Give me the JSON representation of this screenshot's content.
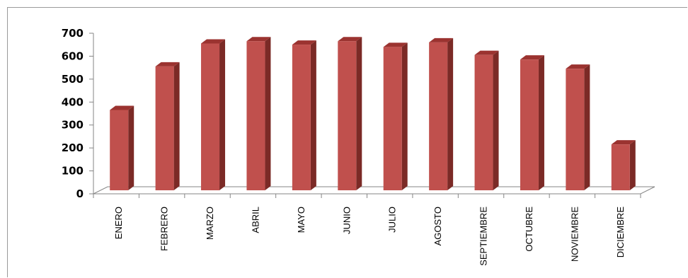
{
  "chart_data": {
    "type": "bar",
    "style": "3d-column",
    "categories": [
      "ENERO",
      "FEBRERO",
      "MARZO",
      "ABRIL",
      "MAYO",
      "JUNIO",
      "JULIO",
      "AGOSTO",
      "SEPTIEMBRE",
      "OCTUBRE",
      "NOVIEMBRE",
      "DICIEMBRE"
    ],
    "values": [
      350,
      540,
      640,
      650,
      635,
      650,
      625,
      645,
      590,
      570,
      530,
      200
    ],
    "ylim": [
      0,
      700
    ],
    "yticks": [
      0,
      100,
      200,
      300,
      400,
      500,
      600,
      700
    ],
    "title": "",
    "xlabel": "",
    "ylabel": "",
    "grid": false,
    "legend": "none",
    "colors": {
      "bar_front": "#c0504d",
      "bar_side": "#7b2a26",
      "bar_top": "#9b3330",
      "floor": "#ffffff",
      "axis": "#868686"
    }
  }
}
